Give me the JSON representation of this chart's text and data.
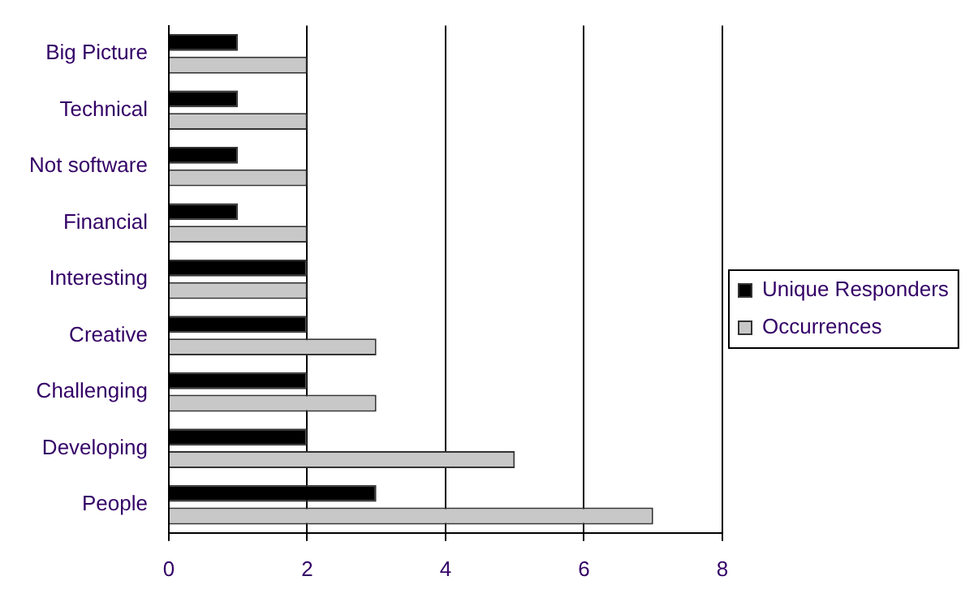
{
  "chart_data": {
    "type": "bar",
    "orientation": "horizontal",
    "categories": [
      "Big Picture",
      "Technical",
      "Not software",
      "Financial",
      "Interesting",
      "Creative",
      "Challenging",
      "Developing",
      "People"
    ],
    "series": [
      {
        "name": "Unique Responders",
        "color": "#000000",
        "values": [
          1,
          1,
          1,
          1,
          2,
          2,
          2,
          2,
          3
        ]
      },
      {
        "name": "Occurrences",
        "color": "#c8c8c8",
        "values": [
          2,
          2,
          2,
          2,
          2,
          3,
          3,
          5,
          7
        ]
      }
    ],
    "xlim": [
      0,
      8
    ],
    "xticks": [
      0,
      2,
      4,
      6,
      8
    ],
    "grid": "x",
    "legend": "right"
  }
}
